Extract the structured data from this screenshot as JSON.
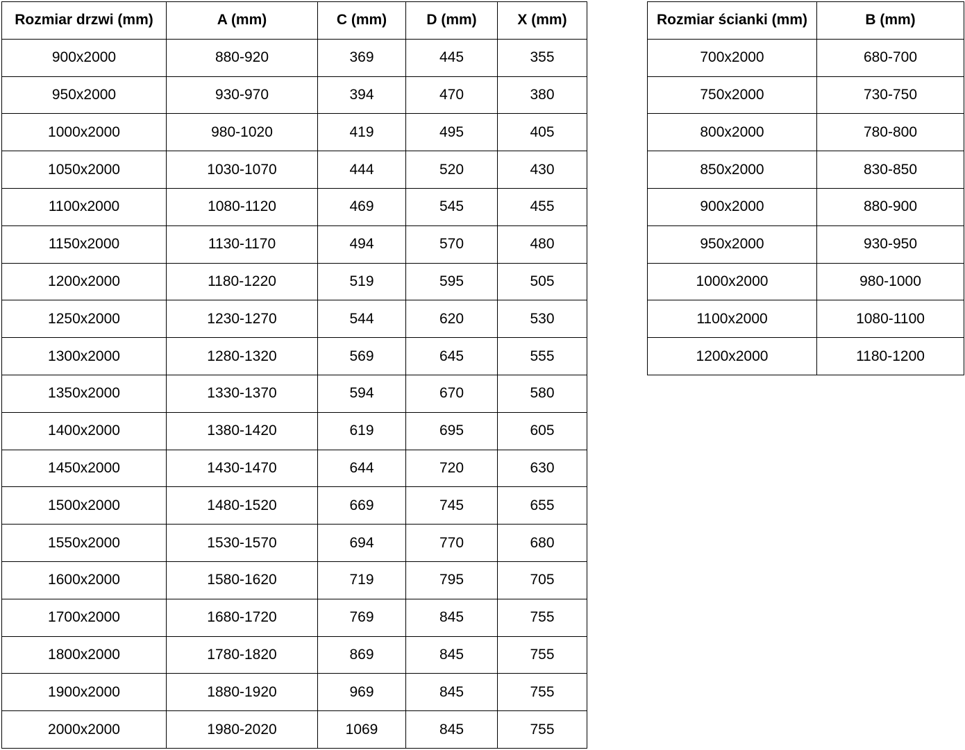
{
  "colors": {
    "background": "#ffffff",
    "border": "#000000",
    "text": "#000000"
  },
  "door_table": {
    "headers": [
      "Rozmiar drzwi (mm)",
      "A (mm)",
      "C (mm)",
      "D (mm)",
      "X (mm)"
    ],
    "rows": [
      [
        "900x2000",
        "880-920",
        "369",
        "445",
        "355"
      ],
      [
        "950x2000",
        "930-970",
        "394",
        "470",
        "380"
      ],
      [
        "1000x2000",
        "980-1020",
        "419",
        "495",
        "405"
      ],
      [
        "1050x2000",
        "1030-1070",
        "444",
        "520",
        "430"
      ],
      [
        "1100x2000",
        "1080-1120",
        "469",
        "545",
        "455"
      ],
      [
        "1150x2000",
        "1130-1170",
        "494",
        "570",
        "480"
      ],
      [
        "1200x2000",
        "1180-1220",
        "519",
        "595",
        "505"
      ],
      [
        "1250x2000",
        "1230-1270",
        "544",
        "620",
        "530"
      ],
      [
        "1300x2000",
        "1280-1320",
        "569",
        "645",
        "555"
      ],
      [
        "1350x2000",
        "1330-1370",
        "594",
        "670",
        "580"
      ],
      [
        "1400x2000",
        "1380-1420",
        "619",
        "695",
        "605"
      ],
      [
        "1450x2000",
        "1430-1470",
        "644",
        "720",
        "630"
      ],
      [
        "1500x2000",
        "1480-1520",
        "669",
        "745",
        "655"
      ],
      [
        "1550x2000",
        "1530-1570",
        "694",
        "770",
        "680"
      ],
      [
        "1600x2000",
        "1580-1620",
        "719",
        "795",
        "705"
      ],
      [
        "1700x2000",
        "1680-1720",
        "769",
        "845",
        "755"
      ],
      [
        "1800x2000",
        "1780-1820",
        "869",
        "845",
        "755"
      ],
      [
        "1900x2000",
        "1880-1920",
        "969",
        "845",
        "755"
      ],
      [
        "2000x2000",
        "1980-2020",
        "1069",
        "845",
        "755"
      ]
    ]
  },
  "wall_table": {
    "headers": [
      "Rozmiar ścianki (mm)",
      "B (mm)"
    ],
    "rows": [
      [
        "700x2000",
        "680-700"
      ],
      [
        "750x2000",
        "730-750"
      ],
      [
        "800x2000",
        "780-800"
      ],
      [
        "850x2000",
        "830-850"
      ],
      [
        "900x2000",
        "880-900"
      ],
      [
        "950x2000",
        "930-950"
      ],
      [
        "1000x2000",
        "980-1000"
      ],
      [
        "1100x2000",
        "1080-1100"
      ],
      [
        "1200x2000",
        "1180-1200"
      ]
    ]
  }
}
